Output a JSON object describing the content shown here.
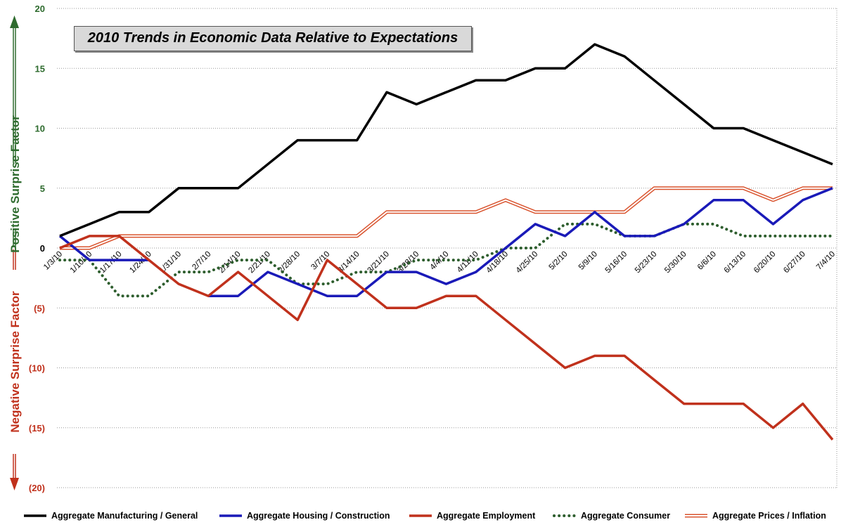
{
  "title": "2010 Trends in Economic Data Relative to Expectations",
  "positive_label": "Positive Surprise Factor",
  "negative_label": "Negative Surprise Factor",
  "colors": {
    "positive": "#2e6b2e",
    "negative": "#c0311c",
    "manufacturing": "#000000",
    "housing": "#1a1ab8",
    "employment": "#c0311c",
    "consumer": "#2e5e2e",
    "prices": "#d9542f"
  },
  "chart_data": {
    "type": "line",
    "title": "2010 Trends in Economic Data Relative to Expectations",
    "ylim": [
      -20,
      20
    ],
    "y_ticks": [
      20,
      15,
      10,
      5,
      0,
      -5,
      -10,
      -15,
      -20
    ],
    "y_tick_labels": [
      "20",
      "15",
      "10",
      "5",
      "0",
      "(5)",
      "(10)",
      "(15)",
      "(20)"
    ],
    "grid": "horizontal dotted",
    "legend_position": "bottom",
    "x": [
      "1/3/10",
      "1/10/10",
      "1/17/10",
      "1/24/10",
      "1/31/10",
      "2/7/10",
      "2/14/10",
      "2/21/10",
      "2/28/10",
      "3/7/10",
      "3/14/10",
      "3/21/10",
      "3/28/10",
      "4/4/10",
      "4/11/10",
      "4/18/10",
      "4/25/10",
      "5/2/10",
      "5/9/10",
      "5/16/10",
      "5/23/10",
      "5/30/10",
      "6/6/10",
      "6/13/10",
      "6/20/10",
      "6/27/10",
      "7/4/10"
    ],
    "series": [
      {
        "name": "Aggregate Manufacturing / General",
        "style": "solid",
        "color": "#000000",
        "values": [
          1,
          2,
          3,
          3,
          5,
          5,
          5,
          7,
          9,
          9,
          9,
          13,
          12,
          13,
          14,
          14,
          15,
          15,
          17,
          16,
          14,
          12,
          10,
          10,
          9,
          8,
          7
        ]
      },
      {
        "name": "Aggregate Housing / Construction",
        "style": "solid",
        "color": "#1a1ab8",
        "values": [
          1,
          -1,
          -1,
          -1,
          null,
          -4,
          -4,
          -2,
          -3,
          -4,
          -4,
          -2,
          -2,
          -3,
          -2,
          0,
          2,
          1,
          3,
          1,
          1,
          2,
          4,
          4,
          2,
          4,
          5
        ]
      },
      {
        "name": "Aggregate Employment",
        "style": "solid",
        "color": "#c0311c",
        "values": [
          0,
          1,
          1,
          -1,
          -3,
          -4,
          -2,
          -4,
          -6,
          -1,
          -3,
          -5,
          -5,
          -4,
          -4,
          -6,
          -8,
          -10,
          -9,
          -9,
          -11,
          -13,
          -13,
          -13,
          -15,
          -13,
          -16
        ]
      },
      {
        "name": "Aggregate Consumer",
        "style": "dotted",
        "color": "#2e5e2e",
        "values": [
          -1,
          -1,
          -4,
          -4,
          -2,
          -2,
          -1,
          -1,
          -3,
          -3,
          -2,
          -2,
          -1,
          -1,
          -1,
          0,
          0,
          2,
          2,
          1,
          1,
          2,
          2,
          1,
          1,
          1,
          1
        ]
      },
      {
        "name": "Aggregate Prices / Inflation",
        "style": "double",
        "color": "#d9542f",
        "values": [
          0,
          0,
          1,
          1,
          1,
          1,
          1,
          1,
          1,
          1,
          1,
          3,
          3,
          3,
          3,
          4,
          3,
          3,
          3,
          3,
          5,
          5,
          5,
          5,
          4,
          5,
          5
        ]
      }
    ]
  }
}
